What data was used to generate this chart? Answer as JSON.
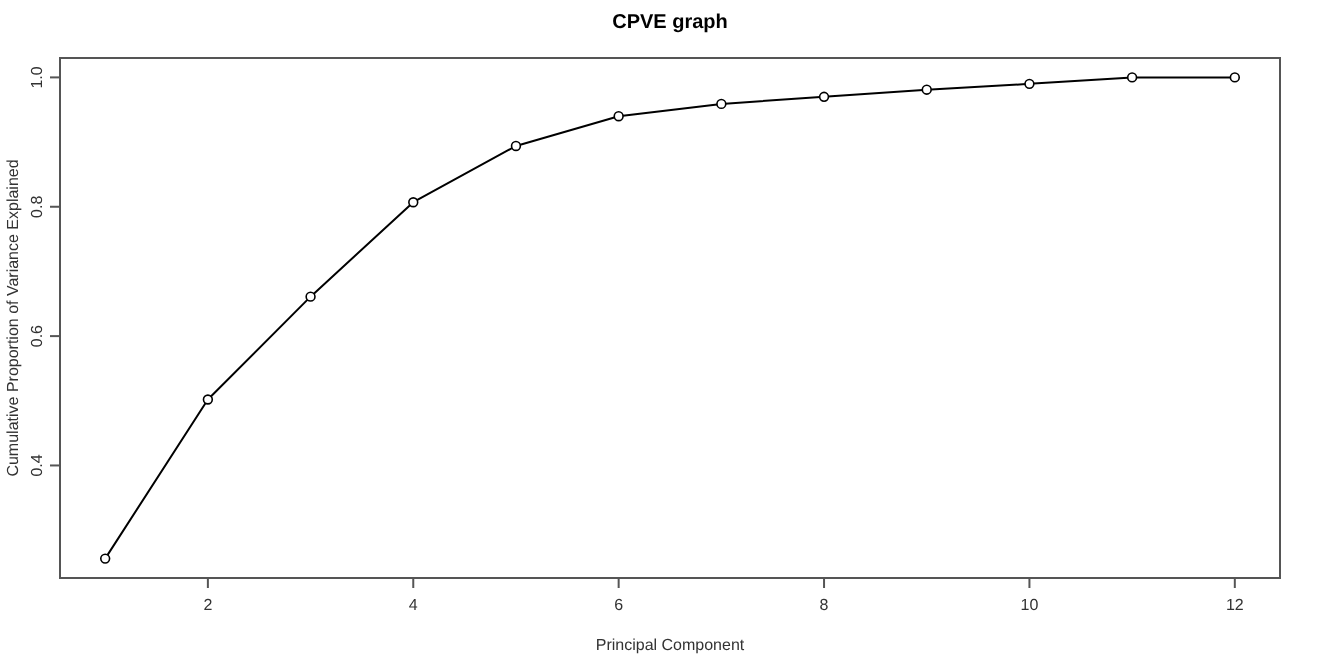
{
  "chart_data": {
    "type": "line",
    "title": "CPVE graph",
    "xlabel": "Principal Component",
    "ylabel": "Cumulative Proportion of Variance Explained",
    "x": [
      1,
      2,
      3,
      4,
      5,
      6,
      7,
      8,
      9,
      10,
      11,
      12
    ],
    "series": [
      {
        "color": "#000000",
        "values": [
          0.256,
          0.502,
          0.661,
          0.807,
          0.894,
          0.94,
          0.959,
          0.97,
          0.981,
          0.99,
          1.0,
          1.0
        ]
      }
    ],
    "xlim": [
      0.56,
      12.44
    ],
    "ylim": [
      0.226,
      1.03
    ],
    "xticks": [
      2,
      4,
      6,
      8,
      10,
      12
    ],
    "yticks": [
      0.4,
      0.6,
      0.8,
      {
        "value": 1,
        "label": "1.0"
      }
    ],
    "marker": "circle",
    "line_style": "solid",
    "grid": false
  }
}
